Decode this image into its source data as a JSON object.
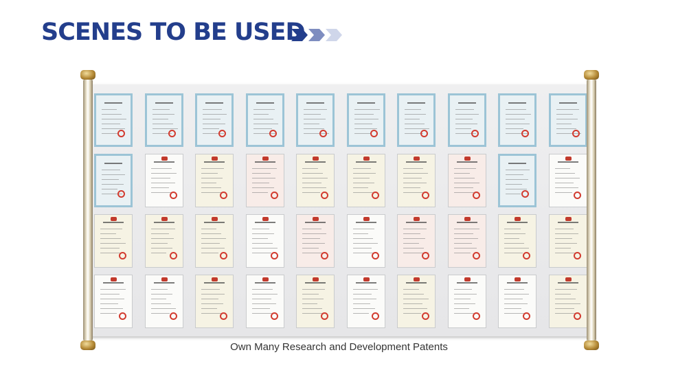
{
  "header": {
    "title": "SCENES TO BE USED",
    "chevron_colors": [
      "#233e8c",
      "#7e8dc0",
      "#cfd6ea"
    ]
  },
  "scroll": {
    "rows": 4,
    "columns": 10,
    "certificates": [
      [
        "blue",
        "blue",
        "blue",
        "blue",
        "blue",
        "blue",
        "blue",
        "blue",
        "blue",
        "blue"
      ],
      [
        "blue",
        "white",
        "cream",
        "pink",
        "cream",
        "cream",
        "cream",
        "pink",
        "blue",
        "white"
      ],
      [
        "cream",
        "cream",
        "cream",
        "white",
        "pink",
        "white",
        "pink",
        "pink",
        "cream",
        "cream"
      ],
      [
        "white",
        "white",
        "cream",
        "white",
        "cream",
        "white",
        "cream",
        "white",
        "white",
        "cream"
      ]
    ]
  },
  "caption": "Own Many Research and Development Patents"
}
